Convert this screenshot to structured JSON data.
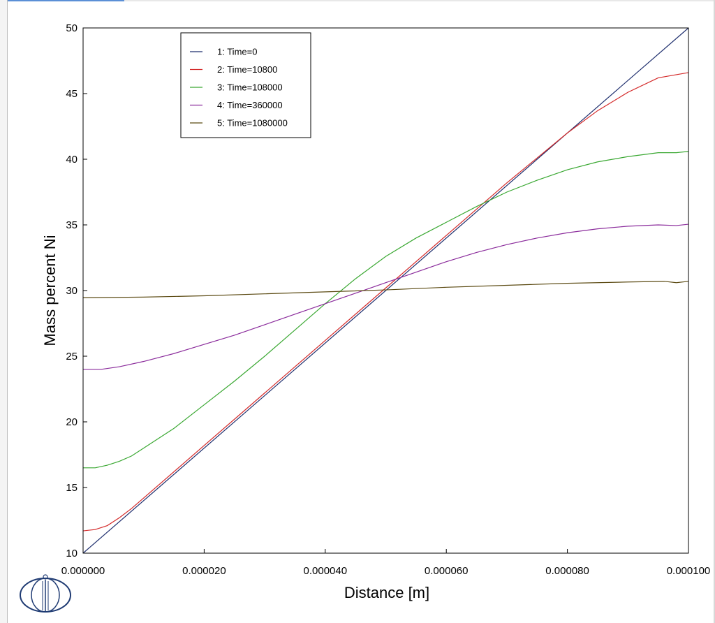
{
  "colors": {
    "background": "#ffffff",
    "axis": "#000000",
    "logo": "#1f3b73"
  },
  "logo_icon": "thermo-calc-logo-icon",
  "chart_data": {
    "type": "line",
    "title": "",
    "xlabel": "Distance [m]",
    "ylabel": "Mass percent Ni",
    "xlim": [
      0,
      0.0001
    ],
    "ylim": [
      10,
      50
    ],
    "x_ticks": [
      0,
      2e-05,
      4e-05,
      6e-05,
      8e-05,
      0.0001
    ],
    "x_tick_labels": [
      "0.000000",
      "0.000020",
      "0.000040",
      "0.000060",
      "0.000080",
      "0.000100"
    ],
    "y_ticks": [
      10,
      15,
      20,
      25,
      30,
      35,
      40,
      45,
      50
    ],
    "y_tick_labels": [
      "10",
      "15",
      "20",
      "25",
      "30",
      "35",
      "40",
      "45",
      "50"
    ],
    "grid": false,
    "legend_position": "top-left",
    "series": [
      {
        "name": "1:  Time=0",
        "color": "#1f2f6e",
        "points": [
          [
            0,
            10
          ],
          [
            0.0001,
            50
          ]
        ]
      },
      {
        "name": "2:  Time=10800",
        "color": "#d42a2a",
        "points": [
          [
            0,
            11.7
          ],
          [
            2e-06,
            11.8
          ],
          [
            4e-06,
            12.1
          ],
          [
            6e-06,
            12.7
          ],
          [
            8e-06,
            13.4
          ],
          [
            1e-05,
            14.2
          ],
          [
            2e-05,
            18.2
          ],
          [
            3e-05,
            22.2
          ],
          [
            4e-05,
            26.2
          ],
          [
            5e-05,
            30.2
          ],
          [
            6e-05,
            34.2
          ],
          [
            7e-05,
            38.2
          ],
          [
            8e-05,
            42.0
          ],
          [
            8.5e-05,
            43.7
          ],
          [
            9e-05,
            45.1
          ],
          [
            9.5e-05,
            46.2
          ],
          [
            0.0001,
            46.6
          ]
        ]
      },
      {
        "name": "3:  Time=108000",
        "color": "#3aa832",
        "points": [
          [
            0,
            16.5
          ],
          [
            2e-06,
            16.5
          ],
          [
            4e-06,
            16.7
          ],
          [
            6e-06,
            17.0
          ],
          [
            8e-06,
            17.4
          ],
          [
            1e-05,
            18.0
          ],
          [
            1.5e-05,
            19.5
          ],
          [
            2e-05,
            21.3
          ],
          [
            2.5e-05,
            23.1
          ],
          [
            3e-05,
            25.0
          ],
          [
            3.5e-05,
            27.0
          ],
          [
            4e-05,
            29.0
          ],
          [
            4.5e-05,
            30.9
          ],
          [
            5e-05,
            32.6
          ],
          [
            5.5e-05,
            34.0
          ],
          [
            6e-05,
            35.2
          ],
          [
            6.5e-05,
            36.4
          ],
          [
            7e-05,
            37.5
          ],
          [
            7.5e-05,
            38.4
          ],
          [
            8e-05,
            39.2
          ],
          [
            8.5e-05,
            39.8
          ],
          [
            9e-05,
            40.2
          ],
          [
            9.5e-05,
            40.5
          ],
          [
            9.8e-05,
            40.5
          ],
          [
            0.0001,
            40.6
          ]
        ]
      },
      {
        "name": "4:  Time=360000",
        "color": "#8b2c9c",
        "points": [
          [
            0,
            24.0
          ],
          [
            3e-06,
            24.0
          ],
          [
            6e-06,
            24.2
          ],
          [
            1e-05,
            24.6
          ],
          [
            1.5e-05,
            25.2
          ],
          [
            2e-05,
            25.9
          ],
          [
            2.5e-05,
            26.6
          ],
          [
            3e-05,
            27.4
          ],
          [
            3.5e-05,
            28.2
          ],
          [
            4e-05,
            29.0
          ],
          [
            4.5e-05,
            29.8
          ],
          [
            5e-05,
            30.6
          ],
          [
            5.5e-05,
            31.4
          ],
          [
            6e-05,
            32.2
          ],
          [
            6.5e-05,
            32.9
          ],
          [
            7e-05,
            33.5
          ],
          [
            7.5e-05,
            34.0
          ],
          [
            8e-05,
            34.4
          ],
          [
            8.5e-05,
            34.7
          ],
          [
            9e-05,
            34.9
          ],
          [
            9.5e-05,
            35.0
          ],
          [
            9.8e-05,
            34.95
          ],
          [
            0.0001,
            35.05
          ]
        ]
      },
      {
        "name": "5:  Time=1080000",
        "color": "#5b4a12",
        "points": [
          [
            0,
            29.45
          ],
          [
            1e-05,
            29.5
          ],
          [
            2e-05,
            29.6
          ],
          [
            3e-05,
            29.75
          ],
          [
            4e-05,
            29.9
          ],
          [
            5e-05,
            30.05
          ],
          [
            6e-05,
            30.25
          ],
          [
            7e-05,
            30.4
          ],
          [
            8e-05,
            30.55
          ],
          [
            9e-05,
            30.65
          ],
          [
            9.6e-05,
            30.7
          ],
          [
            9.8e-05,
            30.6
          ],
          [
            0.0001,
            30.7
          ]
        ]
      }
    ]
  }
}
